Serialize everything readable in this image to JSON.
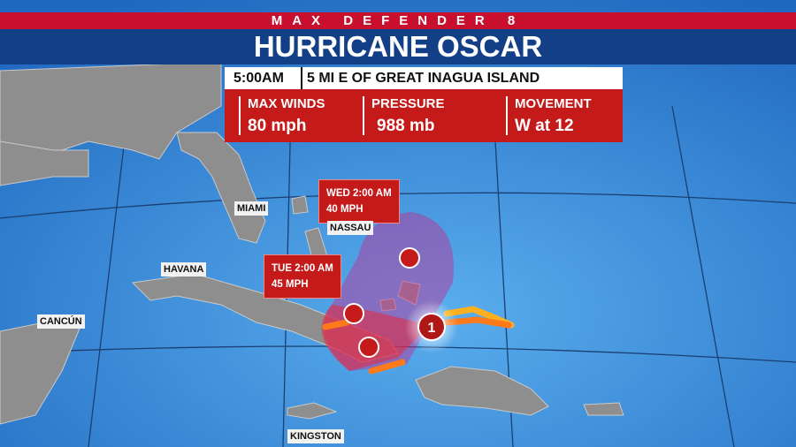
{
  "header": {
    "brand": "MAX DEFENDER 8",
    "title": "HURRICANE OSCAR"
  },
  "info": {
    "time": "5:00AM",
    "location": "5 MI E OF GREAT INAGUA ISLAND",
    "stats": [
      {
        "label": "MAX WINDS",
        "value": "80 mph"
      },
      {
        "label": "PRESSURE",
        "value": "988 mb"
      },
      {
        "label": "MOVEMENT",
        "value": "W at 12"
      }
    ]
  },
  "forecast_points": [
    {
      "time": "WED 2:00 AM",
      "wind": "40 MPH"
    },
    {
      "time": "TUE 2:00 AM",
      "wind": "45 MPH"
    }
  ],
  "current_category": "1",
  "cities": [
    "MIAMI",
    "NASSAU",
    "HAVANA",
    "CANCÚN",
    "KINGSTON"
  ]
}
